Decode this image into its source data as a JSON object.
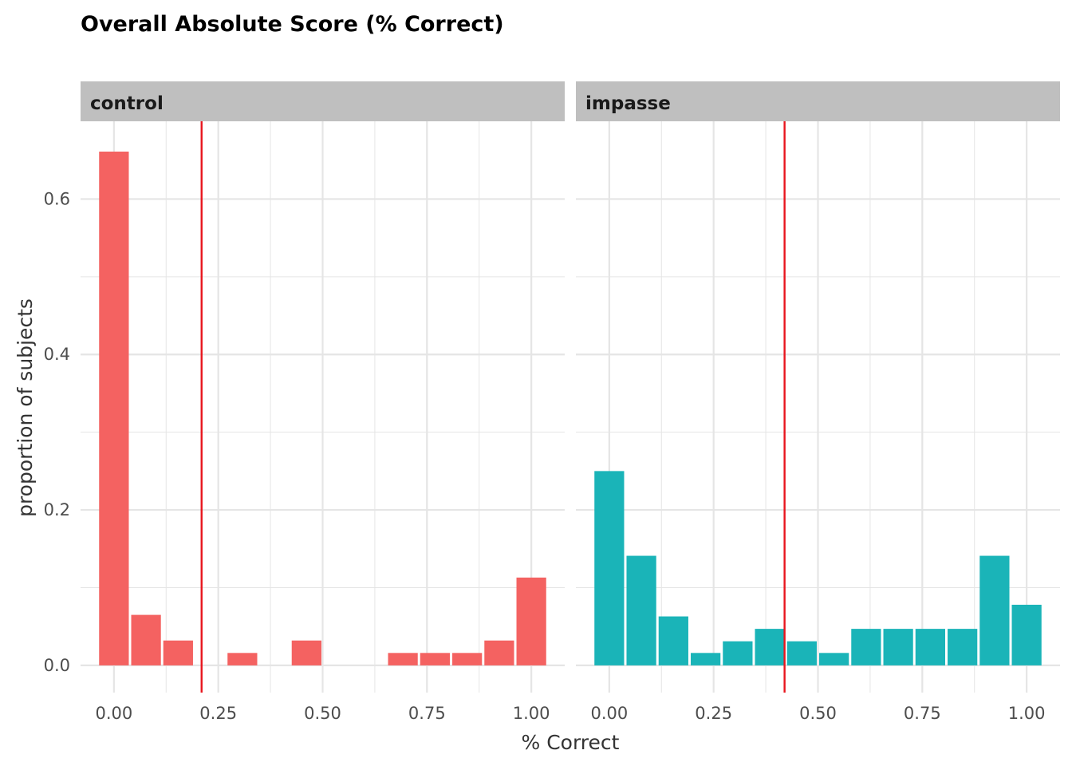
{
  "chart_data": {
    "type": "bar",
    "title": "Overall Absolute Score (% Correct)",
    "xlabel": "% Correct",
    "ylabel": "proportion of subjects",
    "xlim": [
      -0.08,
      1.08
    ],
    "ylim": [
      -0.035,
      0.7
    ],
    "x_ticks": [
      0,
      0.25,
      0.5,
      0.75,
      1.0
    ],
    "x_tick_labels": [
      "0.00",
      "0.25",
      "0.50",
      "0.75",
      "1.00"
    ],
    "y_ticks": [
      0,
      0.2,
      0.4,
      0.6
    ],
    "y_tick_labels": [
      "0.0",
      "0.2",
      "0.4",
      "0.6"
    ],
    "bin_width": 0.0769,
    "grid": true,
    "legend": "none",
    "panels": [
      {
        "label": "control",
        "color": "#F46261",
        "mean_line": 0.21,
        "mean_line_color": "#E8161E",
        "bars": [
          {
            "x": 0.0,
            "y": 0.661
          },
          {
            "x": 0.0769,
            "y": 0.065
          },
          {
            "x": 0.1538,
            "y": 0.032
          },
          {
            "x": 0.3077,
            "y": 0.016
          },
          {
            "x": 0.4615,
            "y": 0.032
          },
          {
            "x": 0.6923,
            "y": 0.016
          },
          {
            "x": 0.7692,
            "y": 0.016
          },
          {
            "x": 0.8462,
            "y": 0.016
          },
          {
            "x": 0.9231,
            "y": 0.032
          },
          {
            "x": 1.0,
            "y": 0.113
          }
        ]
      },
      {
        "label": "impasse",
        "color": "#1AB4B8",
        "mean_line": 0.42,
        "mean_line_color": "#E8161E",
        "bars": [
          {
            "x": 0.0,
            "y": 0.25
          },
          {
            "x": 0.0769,
            "y": 0.141
          },
          {
            "x": 0.1538,
            "y": 0.063
          },
          {
            "x": 0.2308,
            "y": 0.016
          },
          {
            "x": 0.3077,
            "y": 0.031
          },
          {
            "x": 0.3846,
            "y": 0.047
          },
          {
            "x": 0.4615,
            "y": 0.031
          },
          {
            "x": 0.5385,
            "y": 0.016
          },
          {
            "x": 0.6154,
            "y": 0.047
          },
          {
            "x": 0.6923,
            "y": 0.047
          },
          {
            "x": 0.7692,
            "y": 0.047
          },
          {
            "x": 0.8462,
            "y": 0.047
          },
          {
            "x": 0.9231,
            "y": 0.141
          },
          {
            "x": 1.0,
            "y": 0.078
          }
        ]
      }
    ]
  }
}
